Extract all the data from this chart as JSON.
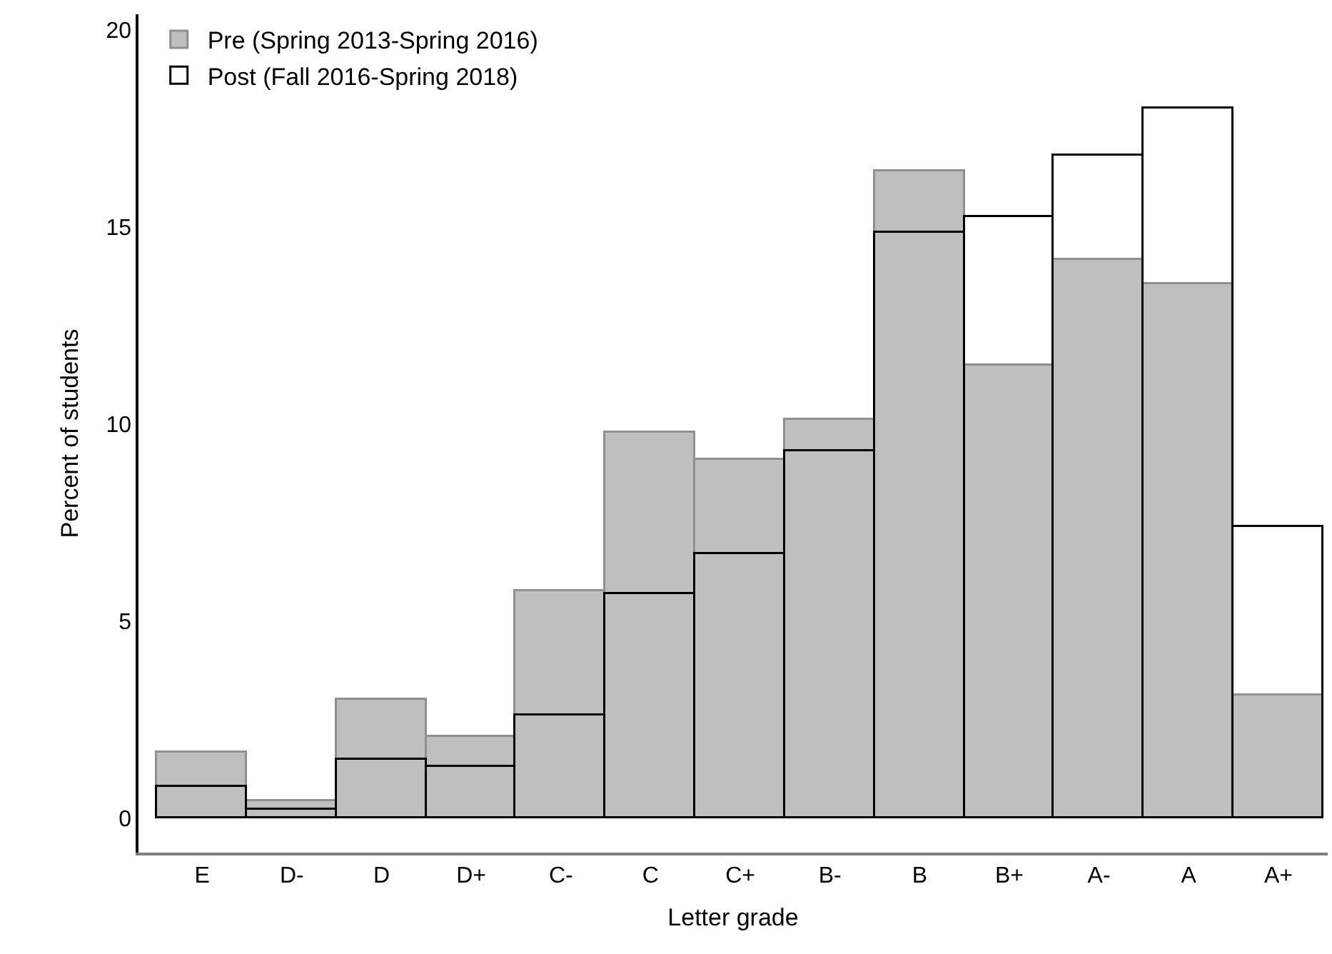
{
  "chart_data": {
    "type": "bar",
    "xlabel": "Letter grade",
    "ylabel": "Percent of students",
    "categories": [
      "E",
      "D-",
      "D",
      "D+",
      "C-",
      "C",
      "C+",
      "B-",
      "B",
      "B+",
      "A-",
      "A",
      "A+"
    ],
    "series": [
      {
        "name": "Pre (Spring 2013-Spring 2016)",
        "color": "#bfbfbf",
        "values": [
          1.67,
          0.45,
          3.0,
          2.05,
          5.75,
          9.8,
          9.1,
          10.1,
          16.4,
          11.5,
          14.15,
          13.55,
          3.1
        ]
      },
      {
        "name": "Post (Fall 2016-Spring 2018)",
        "color": "#000000",
        "values": [
          0.8,
          0.2,
          1.5,
          1.32,
          2.6,
          5.7,
          6.72,
          9.3,
          14.85,
          15.25,
          16.8,
          18.0,
          7.4
        ]
      }
    ],
    "ylim": [
      -0.87,
      20.4
    ],
    "yticks": [
      0,
      5,
      10,
      15,
      20
    ],
    "legend": "top left"
  }
}
